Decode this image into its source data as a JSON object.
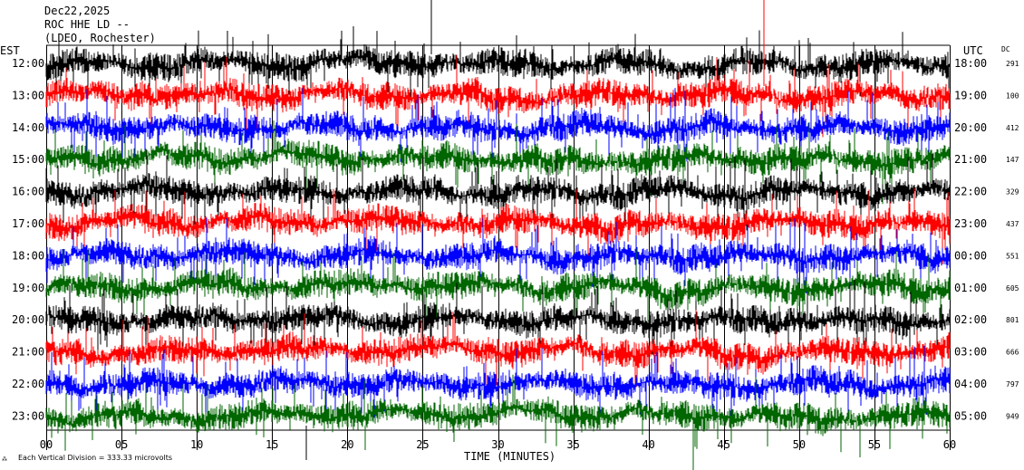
{
  "header": {
    "date": "Dec22,2025",
    "station_line": "ROC HHE LD --",
    "location_line": "(LDEO, Rochester)"
  },
  "left_axis_label": "EST",
  "right_axis_label": "UTC",
  "dc_label": "DC",
  "footer_text": "Each Vertical Division =  333.33 microvolts",
  "colors": {
    "trace_cycle": [
      "#000000",
      "#ff0000",
      "#0000ff",
      "#006600"
    ],
    "background": "#ffffff",
    "axis": "#000000",
    "gridline": "#000000"
  },
  "chart_data": {
    "type": "line",
    "xlabel": "TIME (MINUTES)",
    "x_ticks": [
      "00",
      "05",
      "10",
      "15",
      "20",
      "25",
      "30",
      "35",
      "40",
      "45",
      "50",
      "55",
      "60"
    ],
    "xlim": [
      0,
      60
    ],
    "rows": [
      {
        "est": "12:00",
        "utc": "18:00",
        "dc": "291"
      },
      {
        "est": "13:00",
        "utc": "19:00",
        "dc": "100"
      },
      {
        "est": "14:00",
        "utc": "20:00",
        "dc": "412"
      },
      {
        "est": "15:00",
        "utc": "21:00",
        "dc": "147"
      },
      {
        "est": "16:00",
        "utc": "22:00",
        "dc": "329"
      },
      {
        "est": "17:00",
        "utc": "23:00",
        "dc": "437"
      },
      {
        "est": "18:00",
        "utc": "00:00",
        "dc": "551"
      },
      {
        "est": "19:00",
        "utc": "01:00",
        "dc": "605"
      },
      {
        "est": "20:00",
        "utc": "02:00",
        "dc": "801"
      },
      {
        "est": "21:00",
        "utc": "03:00",
        "dc": "666"
      },
      {
        "est": "22:00",
        "utc": "04:00",
        "dc": "797"
      },
      {
        "est": "23:00",
        "utc": "05:00",
        "dc": "949"
      }
    ]
  }
}
